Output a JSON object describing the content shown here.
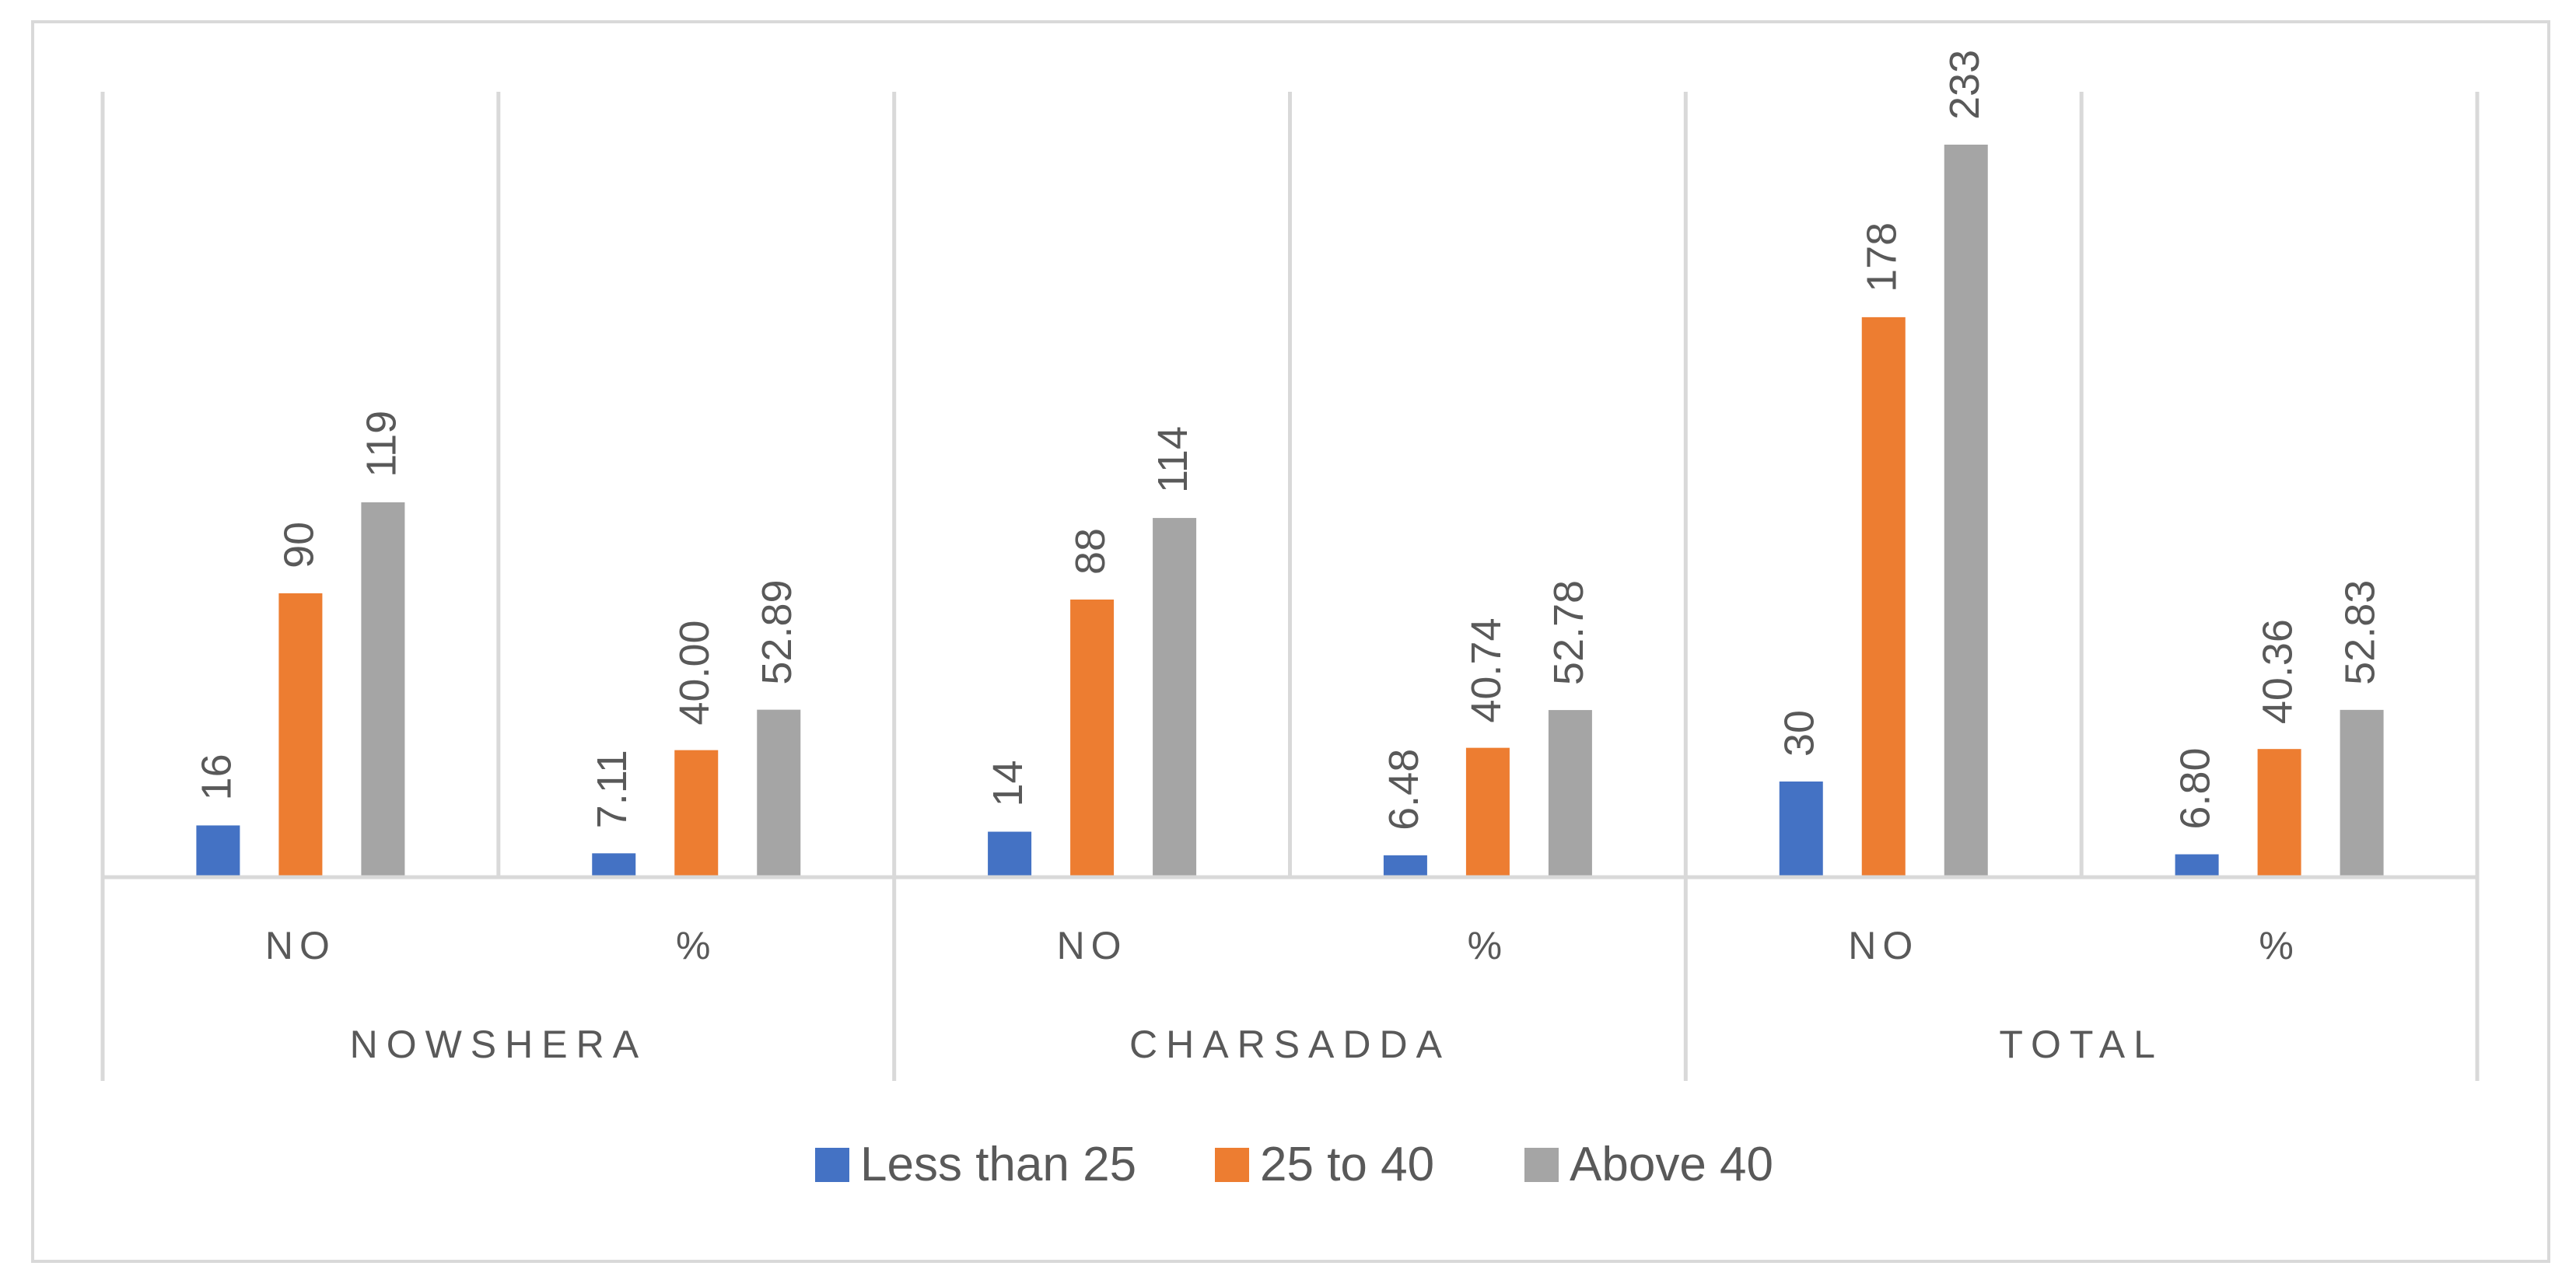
{
  "chart_data": {
    "type": "bar",
    "title": "",
    "xlabel": "",
    "ylabel": "",
    "groups": [
      {
        "label": "NOWSHERA",
        "subcategories": [
          "NO",
          "%"
        ]
      },
      {
        "label": "CHARSADDA",
        "subcategories": [
          "NO",
          "%"
        ]
      },
      {
        "label": "TOTAL",
        "subcategories": [
          "NO",
          "%"
        ]
      }
    ],
    "categories": [
      "NO",
      "%",
      "NO",
      "%",
      "NO",
      "%"
    ],
    "series": [
      {
        "name": "Less than 25",
        "color": "#4472C4",
        "values": [
          16,
          7.11,
          14,
          6.48,
          30,
          6.8
        ],
        "labels": [
          "16",
          "7.11",
          "14",
          "6.48",
          "30",
          "6.80"
        ]
      },
      {
        "name": "25 to 40",
        "color": "#ED7D31",
        "values": [
          90,
          40.0,
          88,
          40.74,
          178,
          40.36
        ],
        "labels": [
          "90",
          "40.00",
          "88",
          "40.74",
          "178",
          "40.36"
        ]
      },
      {
        "name": "Above 40",
        "color": "#A5A5A5",
        "values": [
          119,
          52.89,
          114,
          52.78,
          233,
          52.83
        ],
        "labels": [
          "119",
          "52.89",
          "114",
          "52.78",
          "233",
          "52.83"
        ]
      }
    ],
    "ylim": [
      0,
      233
    ],
    "grid": false,
    "legend_position": "bottom"
  }
}
